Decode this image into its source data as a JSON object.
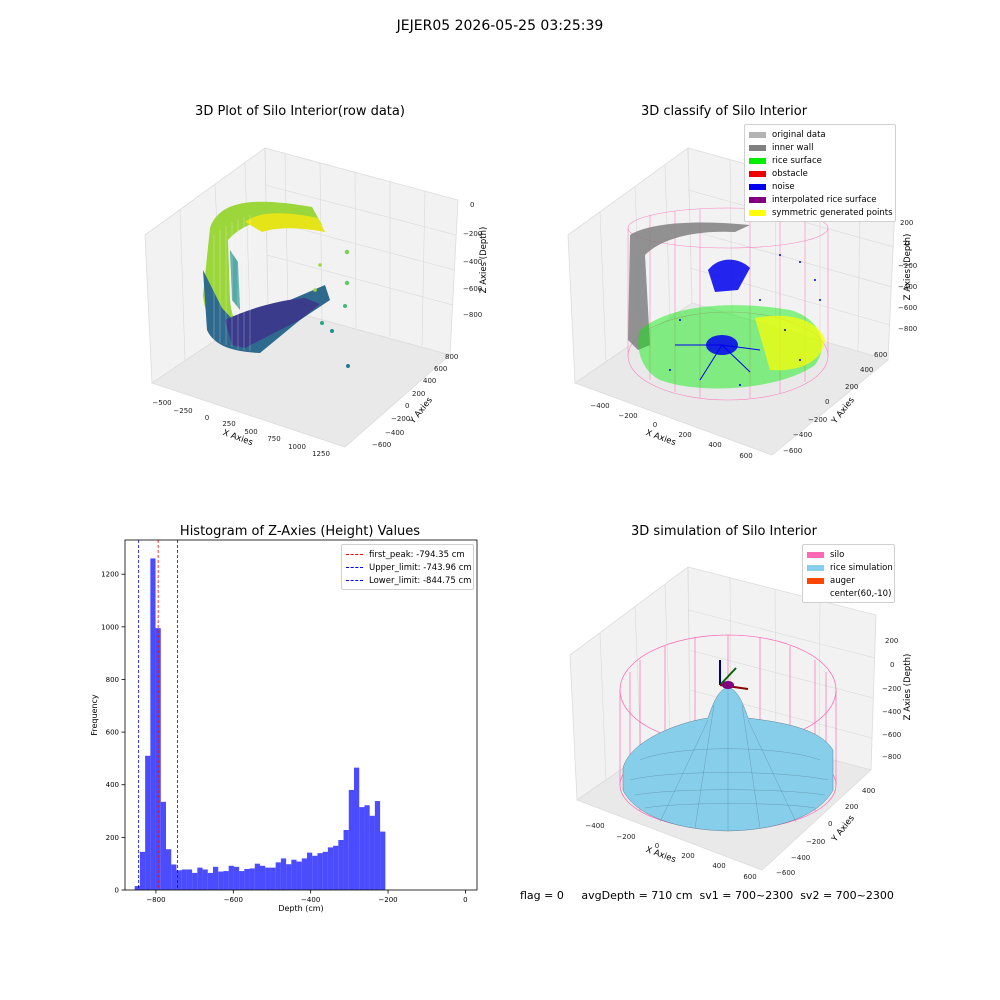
{
  "suptitle": "JEJER05 2026-05-25 03:25:39",
  "panels": {
    "raw": {
      "title": "3D Plot of Silo Interior(row data)",
      "xlabel": "X Axies",
      "ylabel": "Y Axies",
      "zlabel": "Z Axies (Depth)",
      "xticks": [
        "−500",
        "−250",
        "0",
        "250",
        "500",
        "750",
        "1000",
        "1250"
      ],
      "yticks": [
        "−600",
        "−400",
        "−200",
        "0",
        "200",
        "400",
        "600",
        "800"
      ],
      "zticks": [
        "0",
        "−200",
        "−400",
        "−600",
        "−800"
      ]
    },
    "classify": {
      "title": "3D classify of Silo Interior",
      "xlabel": "X Axies",
      "ylabel": "Y Axies",
      "zlabel": "Z Axies (Depth)",
      "xticks": [
        "−400",
        "−200",
        "0",
        "200",
        "400",
        "600"
      ],
      "yticks": [
        "−600",
        "−400",
        "−200",
        "0",
        "200",
        "400",
        "600"
      ],
      "zticks": [
        "200",
        "0",
        "−200",
        "−400",
        "−600",
        "−800"
      ],
      "legend": [
        {
          "label": "original data",
          "color": "#b3b3b3"
        },
        {
          "label": "inner wall",
          "color": "#808080"
        },
        {
          "label": "rice surface",
          "color": "#00ee00"
        },
        {
          "label": "obstacle",
          "color": "#ee0000"
        },
        {
          "label": "noise",
          "color": "#0000ee"
        },
        {
          "label": "interpolated rice surface",
          "color": "#800080"
        },
        {
          "label": "symmetric generated points",
          "color": "#ffff00"
        }
      ]
    },
    "simulation": {
      "title": "3D simulation of Silo Interior",
      "xlabel": "X Axies",
      "ylabel": "Y Axies",
      "zlabel": "Z Axies (Depth)",
      "xticks": [
        "−400",
        "−200",
        "0",
        "200",
        "400",
        "600"
      ],
      "yticks": [
        "−600",
        "−400",
        "−200",
        "0",
        "200",
        "400"
      ],
      "zticks": [
        "200",
        "0",
        "−200",
        "−400",
        "−600",
        "−800"
      ],
      "legend": [
        {
          "label": "silo",
          "color": "#ff69b4"
        },
        {
          "label": "rice simulation",
          "color": "#87ceeb"
        },
        {
          "label": "auger",
          "color": "#ff4500"
        },
        {
          "label": "center(60,-10)",
          "color": ""
        }
      ]
    }
  },
  "footer": {
    "flag": "flag = 0",
    "avg": "avgDepth = 710 cm  sv1 = 700~2300  sv2 = 700~2300"
  },
  "chart_data": [
    {
      "type": "bar",
      "title": "Histogram of Z-Axies (Height) Values",
      "xlabel": "Depth (cm)",
      "ylabel": "Frequency",
      "xlim": [
        -880,
        30
      ],
      "ylim": [
        0,
        1330
      ],
      "xticks": [
        -800,
        -600,
        -400,
        -200,
        0
      ],
      "yticks": [
        0,
        200,
        400,
        600,
        800,
        1000,
        1200
      ],
      "bin_start": -855,
      "bin_width": 13.5,
      "values": [
        15,
        145,
        510,
        1260,
        995,
        335,
        155,
        97,
        75,
        78,
        78,
        65,
        85,
        78,
        65,
        88,
        70,
        72,
        92,
        88,
        72,
        80,
        82,
        100,
        92,
        85,
        85,
        105,
        120,
        98,
        115,
        108,
        120,
        142,
        130,
        140,
        145,
        162,
        168,
        190,
        228,
        380,
        465,
        315,
        322,
        282,
        338,
        222
      ],
      "color": "#0000ff",
      "vlines": [
        {
          "label": "first_peak: -794.35 cm",
          "x": -794.35,
          "color": "#ff0000"
        },
        {
          "label": "Upper_limit: -743.96 cm",
          "x": -743.96,
          "color": "#0000ff"
        },
        {
          "label": "Lower_limit: -844.75 cm",
          "x": -844.75,
          "color": "#0000ff"
        }
      ],
      "legend_loc": "upper right"
    }
  ]
}
